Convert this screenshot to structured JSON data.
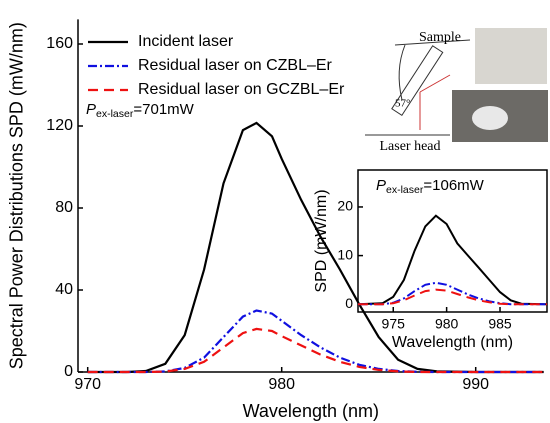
{
  "chart_data": [
    {
      "type": "line",
      "x_label": "Wavelength (nm)",
      "y_label": "Spectral Power Distributions SPD (mW/nm)",
      "annotation": {
        "symbol": "P",
        "subscript": "ex-laser",
        "text": "=701mW"
      },
      "diagram_labels": [
        "Sample",
        "57°",
        "Laser head"
      ],
      "legend": "upper left",
      "x": [
        970,
        972,
        973,
        974,
        975,
        976,
        977,
        978,
        978.7,
        979.5,
        980,
        981,
        982,
        983,
        984,
        985,
        986,
        987,
        988,
        990,
        993.5
      ],
      "series": [
        {
          "name": "Incident laser",
          "color": "#000000",
          "linestyle": "solid",
          "values": [
            0,
            0,
            0.5,
            4,
            18,
            50,
            92,
            118,
            121.5,
            115,
            104,
            84,
            66,
            50,
            33,
            17,
            6,
            1.5,
            0.3,
            0,
            0
          ]
        },
        {
          "name": "Residual laser on CZBL–Er",
          "color": "#1010e0",
          "linestyle": "dashdot",
          "values": [
            0,
            0,
            0,
            0.3,
            2,
            7,
            17,
            27,
            30,
            28.5,
            25,
            18,
            12,
            7,
            3.5,
            1.5,
            0.5,
            0.1,
            0,
            0,
            0
          ]
        },
        {
          "name": "Residual laser on GCZBL–Er",
          "color": "#ee1111",
          "linestyle": "dashed",
          "values": [
            0,
            0,
            0,
            0.2,
            1.5,
            5,
            12,
            19,
            21,
            20,
            17.5,
            13,
            8.5,
            5,
            2.5,
            1,
            0.3,
            0,
            0,
            0,
            0
          ]
        }
      ],
      "xlim": [
        969.5,
        993.5
      ],
      "xticks": [
        970,
        980,
        990
      ],
      "ylim": [
        0,
        172
      ],
      "yticks": [
        0,
        40,
        80,
        120,
        160
      ]
    },
    {
      "type": "line",
      "x_label": "Wavelength (nm)",
      "y_label": "SPD (mW/nm)",
      "annotation": {
        "symbol": "P",
        "subscript": "ex-laser",
        "text": "=106mW"
      },
      "x": [
        971.7,
        974,
        975,
        976,
        977,
        978,
        979,
        980,
        981,
        982,
        983,
        984,
        985,
        986,
        987,
        989.4
      ],
      "series": [
        {
          "color": "#000000",
          "linestyle": "solid",
          "values": [
            0,
            0.2,
            1.5,
            5,
            11,
            16,
            18.2,
            16.5,
            12.5,
            10,
            7.5,
            5,
            2.5,
            0.8,
            0.1,
            0
          ]
        },
        {
          "color": "#1010e0",
          "linestyle": "dashdot",
          "values": [
            0,
            0,
            0.3,
            1.2,
            2.7,
            4,
            4.4,
            4,
            3,
            2,
            1.2,
            0.6,
            0.2,
            0,
            0,
            0
          ]
        },
        {
          "color": "#ee1111",
          "linestyle": "dashed",
          "values": [
            0,
            0,
            0.2,
            0.8,
            1.8,
            2.7,
            3,
            2.8,
            2.1,
            1.4,
            0.8,
            0.4,
            0.1,
            0,
            0,
            0
          ]
        }
      ],
      "xlim": [
        971.7,
        989.4
      ],
      "xticks": [
        975,
        980,
        985
      ],
      "ylim": [
        -1.6,
        27.6
      ],
      "yticks": [
        0,
        10,
        20
      ]
    }
  ]
}
